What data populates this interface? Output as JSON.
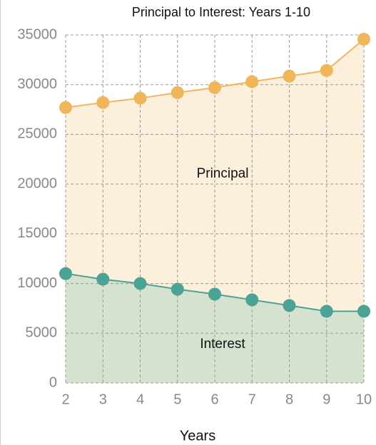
{
  "chart_data": {
    "type": "line",
    "title": "Principal to Interest: Years 1-10",
    "x_label": "Years",
    "x": [
      2,
      3,
      4,
      5,
      6,
      7,
      8,
      9,
      10
    ],
    "xlim": [
      2,
      10
    ],
    "xticks": [
      2,
      3,
      4,
      5,
      6,
      7,
      8,
      9,
      10
    ],
    "ylim": [
      0,
      35000
    ],
    "yticks": [
      0,
      5000,
      10000,
      15000,
      20000,
      25000,
      30000,
      35000
    ],
    "grid": true,
    "series": [
      {
        "name": "Principal",
        "color": "#f0b75a",
        "fill": "#fcefdc",
        "values": [
          27700,
          28200,
          28640,
          29200,
          29700,
          30300,
          30860,
          31430,
          34570
        ]
      },
      {
        "name": "Interest",
        "color": "#4aa394",
        "fill": "#d6e2d0",
        "values": [
          11000,
          10430,
          10000,
          9430,
          8930,
          8360,
          7790,
          7210,
          7210
        ]
      }
    ]
  }
}
